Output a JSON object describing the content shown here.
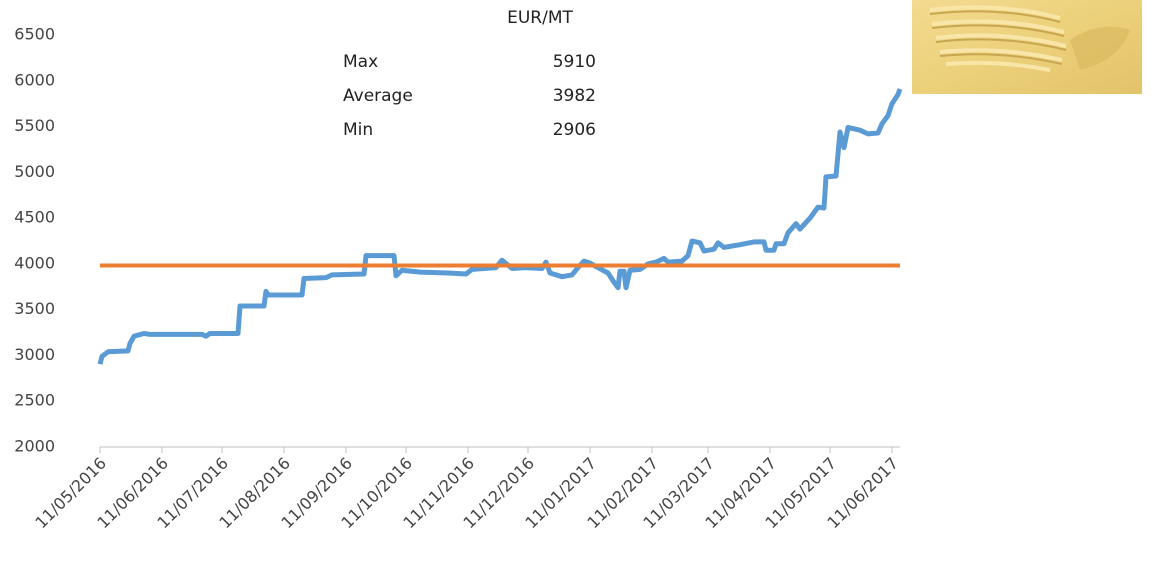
{
  "chart_data": {
    "type": "line",
    "x": [
      "2016-05-11",
      "2016-05-12",
      "2016-05-15",
      "2016-05-25",
      "2016-05-26",
      "2016-05-28",
      "2016-06-02",
      "2016-06-05",
      "2016-07-01",
      "2016-07-03",
      "2016-07-05",
      "2016-07-19",
      "2016-07-20",
      "2016-08-01",
      "2016-08-02",
      "2016-08-03",
      "2016-08-20",
      "2016-08-21",
      "2016-09-01",
      "2016-09-04",
      "2016-09-20",
      "2016-09-21",
      "2016-10-05",
      "2016-10-06",
      "2016-10-09",
      "2016-10-18",
      "2016-11-01",
      "2016-11-10",
      "2016-11-13",
      "2016-11-25",
      "2016-11-28",
      "2016-12-03",
      "2016-12-10",
      "2016-12-18",
      "2016-12-20",
      "2016-12-22",
      "2016-12-28",
      "2017-01-02",
      "2017-01-05",
      "2017-01-08",
      "2017-01-11",
      "2017-01-14",
      "2017-01-20",
      "2017-01-23",
      "2017-01-25",
      "2017-01-26",
      "2017-01-28",
      "2017-01-29",
      "2017-01-31",
      "2017-02-05",
      "2017-02-09",
      "2017-02-13",
      "2017-02-17",
      "2017-02-19",
      "2017-02-26",
      "2017-03-01",
      "2017-03-03",
      "2017-03-07",
      "2017-03-09",
      "2017-03-14",
      "2017-03-16",
      "2017-03-19",
      "2017-03-27",
      "2017-04-03",
      "2017-04-08",
      "2017-04-09",
      "2017-04-13",
      "2017-04-14",
      "2017-04-18",
      "2017-04-20",
      "2017-04-24",
      "2017-04-26",
      "2017-05-01",
      "2017-05-05",
      "2017-05-08",
      "2017-05-09",
      "2017-05-14",
      "2017-05-16",
      "2017-05-18",
      "2017-05-20",
      "2017-05-26",
      "2017-05-30",
      "2017-06-04",
      "2017-06-06",
      "2017-06-09",
      "2017-06-11",
      "2017-06-14",
      "2017-06-15"
    ],
    "series": [
      {
        "color": "#5b9bd5",
        "values": [
          2906,
          2990,
          3040,
          3050,
          3130,
          3210,
          3240,
          3230,
          3230,
          3210,
          3240,
          3240,
          3540,
          3540,
          3700,
          3660,
          3660,
          3840,
          3850,
          3880,
          3890,
          4090,
          4090,
          3870,
          3930,
          3910,
          3900,
          3890,
          3940,
          3960,
          4040,
          3950,
          3960,
          3950,
          4020,
          3900,
          3860,
          3880,
          3960,
          4030,
          4010,
          3970,
          3900,
          3800,
          3740,
          3920,
          3920,
          3740,
          3930,
          3940,
          4000,
          4020,
          4060,
          4020,
          4030,
          4090,
          4250,
          4230,
          4140,
          4160,
          4230,
          4180,
          4210,
          4240,
          4240,
          4150,
          4150,
          4220,
          4220,
          4340,
          4440,
          4380,
          4500,
          4620,
          4610,
          4950,
          4960,
          5440,
          5270,
          5490,
          5460,
          5420,
          5430,
          5530,
          5620,
          5750,
          5850,
          5910
        ]
      },
      {
        "color": "#ed7d31",
        "x": [
          "2016-05-11",
          "2017-06-15"
        ],
        "values": [
          3982,
          3982
        ]
      }
    ],
    "xlim": [
      "2016-05-11",
      "2017-06-15"
    ],
    "xticks": [
      {
        "value": "2016-05-11",
        "label": "11/05/2016"
      },
      {
        "value": "2016-06-11",
        "label": "11/06/2016"
      },
      {
        "value": "2016-07-11",
        "label": "11/07/2016"
      },
      {
        "value": "2016-08-11",
        "label": "11/08/2016"
      },
      {
        "value": "2016-09-11",
        "label": "11/09/2016"
      },
      {
        "value": "2016-10-11",
        "label": "11/10/2016"
      },
      {
        "value": "2016-11-11",
        "label": "11/11/2016"
      },
      {
        "value": "2016-12-11",
        "label": "11/12/2016"
      },
      {
        "value": "2017-01-11",
        "label": "11/01/2017"
      },
      {
        "value": "2017-02-11",
        "label": "11/02/2017"
      },
      {
        "value": "2017-03-11",
        "label": "11/03/2017"
      },
      {
        "value": "2017-04-11",
        "label": "11/04/2017"
      },
      {
        "value": "2017-05-11",
        "label": "11/05/2017"
      },
      {
        "value": "2017-06-11",
        "label": "11/06/2017"
      }
    ],
    "ylim": [
      2000,
      6500
    ],
    "yticks": [
      2000,
      2500,
      3000,
      3500,
      4000,
      4500,
      5000,
      5500,
      6000,
      6500
    ],
    "stats": {
      "header": "EUR/MT",
      "rows": [
        [
          "Max",
          5910
        ],
        [
          "Average",
          3982
        ],
        [
          "Min",
          2906
        ]
      ]
    }
  }
}
